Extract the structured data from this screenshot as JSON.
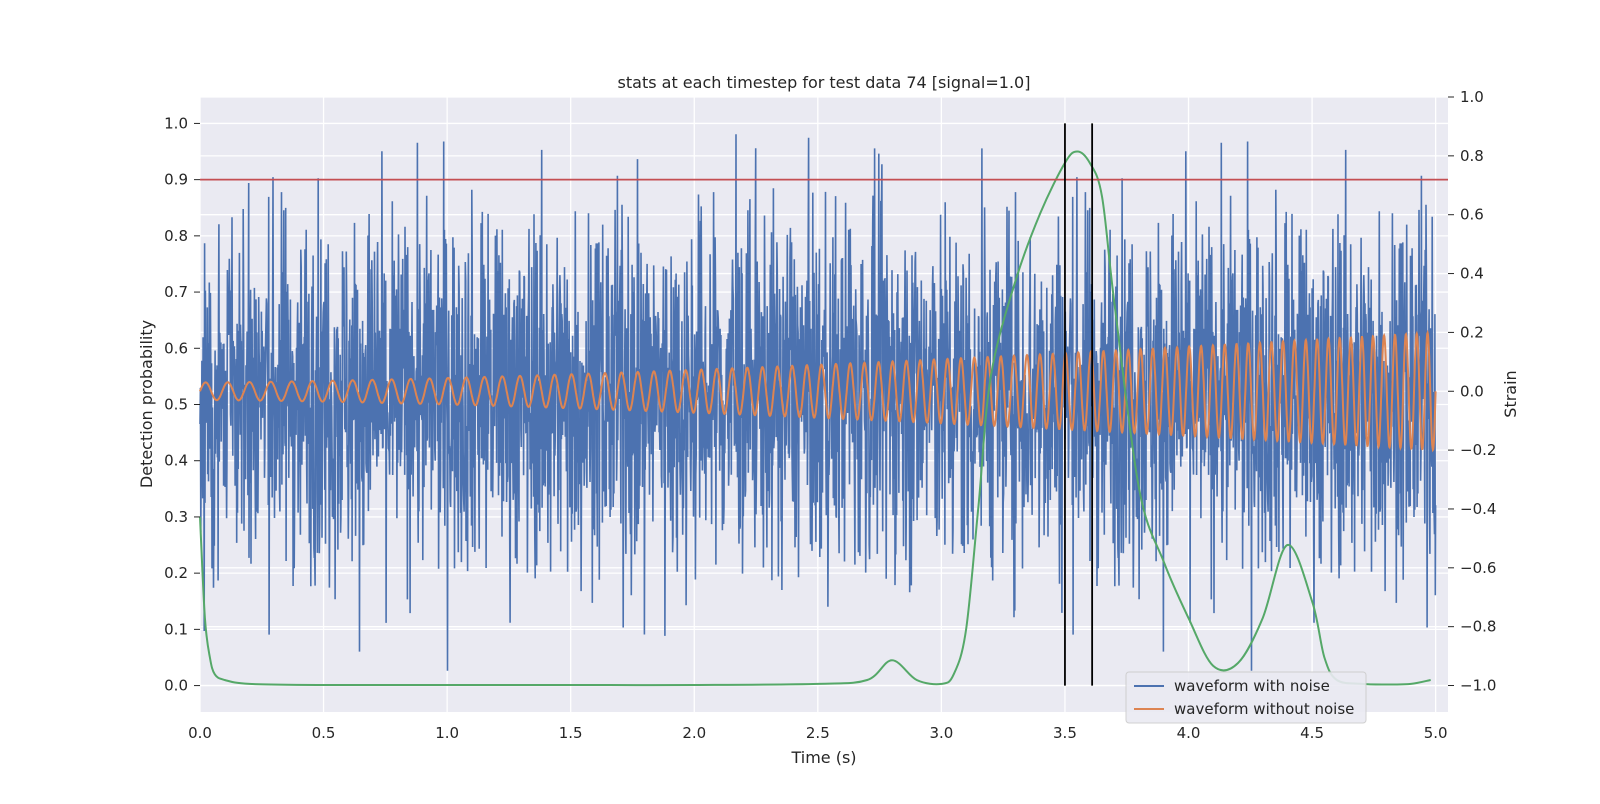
{
  "chart_data": {
    "type": "line",
    "title": "stats at each timestep for test data 74 [signal=1.0]",
    "xlabel": "Time (s)",
    "ylabel": "Detection probability",
    "y2label": "Strain",
    "xlim": [
      0.0,
      5.05
    ],
    "ylim": [
      -0.047,
      1.047
    ],
    "y2lim": [
      -1.09,
      1.0
    ],
    "xticks": [
      "0.0",
      "0.5",
      "1.0",
      "1.5",
      "2.0",
      "2.5",
      "3.0",
      "3.5",
      "4.0",
      "4.5",
      "5.0"
    ],
    "yticks": [
      "0.0",
      "0.1",
      "0.2",
      "0.3",
      "0.4",
      "0.5",
      "0.6",
      "0.7",
      "0.8",
      "0.9",
      "1.0"
    ],
    "y2ticks": [
      "−1.0",
      "−0.8",
      "−0.6",
      "−0.4",
      "−0.2",
      "0.0",
      "0.2",
      "0.4",
      "0.6",
      "0.8",
      "1.0"
    ],
    "grid": true,
    "legend_position": "bottom-right",
    "threshold": {
      "y": 0.9,
      "color": "#c44e52"
    },
    "vlines": [
      {
        "x": 3.5,
        "ymin": 0.0,
        "ymax": 1.0,
        "color": "#000000"
      },
      {
        "x": 3.61,
        "ymin": 0.0,
        "ymax": 1.0,
        "color": "#000000"
      }
    ],
    "series": [
      {
        "name": "waveform with noise",
        "axis": "right",
        "color": "#4c72b0",
        "description": "noisy strain oscillating roughly between -1.0 and 0.98 across 0-5 s",
        "x_range": [
          0.0,
          5.0
        ],
        "envelope": [
          -0.95,
          0.95
        ]
      },
      {
        "name": "waveform without noise",
        "axis": "right",
        "color": "#dd8452",
        "x_range": [
          0.0,
          5.0
        ],
        "amplitude_start": 0.03,
        "amplitude_end": 0.2,
        "cycles": 85
      },
      {
        "axis": "left",
        "color": "#55a868",
        "x": [
          0.0,
          0.02,
          0.04,
          0.06,
          0.1,
          0.2,
          0.5,
          1.0,
          1.5,
          2.0,
          2.5,
          2.7,
          2.8,
          2.9,
          3.0,
          3.05,
          3.1,
          3.15,
          3.2,
          3.3,
          3.4,
          3.5,
          3.55,
          3.6,
          3.65,
          3.7,
          3.8,
          3.9,
          4.0,
          4.1,
          4.2,
          4.3,
          4.4,
          4.5,
          4.55,
          4.6,
          4.7,
          4.8,
          4.9,
          4.98
        ],
        "y": [
          0.3,
          0.12,
          0.05,
          0.02,
          0.01,
          0.003,
          0.001,
          0.001,
          0.001,
          0.001,
          0.003,
          0.01,
          0.045,
          0.01,
          0.003,
          0.02,
          0.1,
          0.32,
          0.55,
          0.72,
          0.84,
          0.93,
          0.95,
          0.93,
          0.87,
          0.68,
          0.35,
          0.22,
          0.12,
          0.035,
          0.04,
          0.12,
          0.25,
          0.15,
          0.05,
          0.01,
          0.003,
          0.002,
          0.003,
          0.01
        ]
      }
    ]
  }
}
